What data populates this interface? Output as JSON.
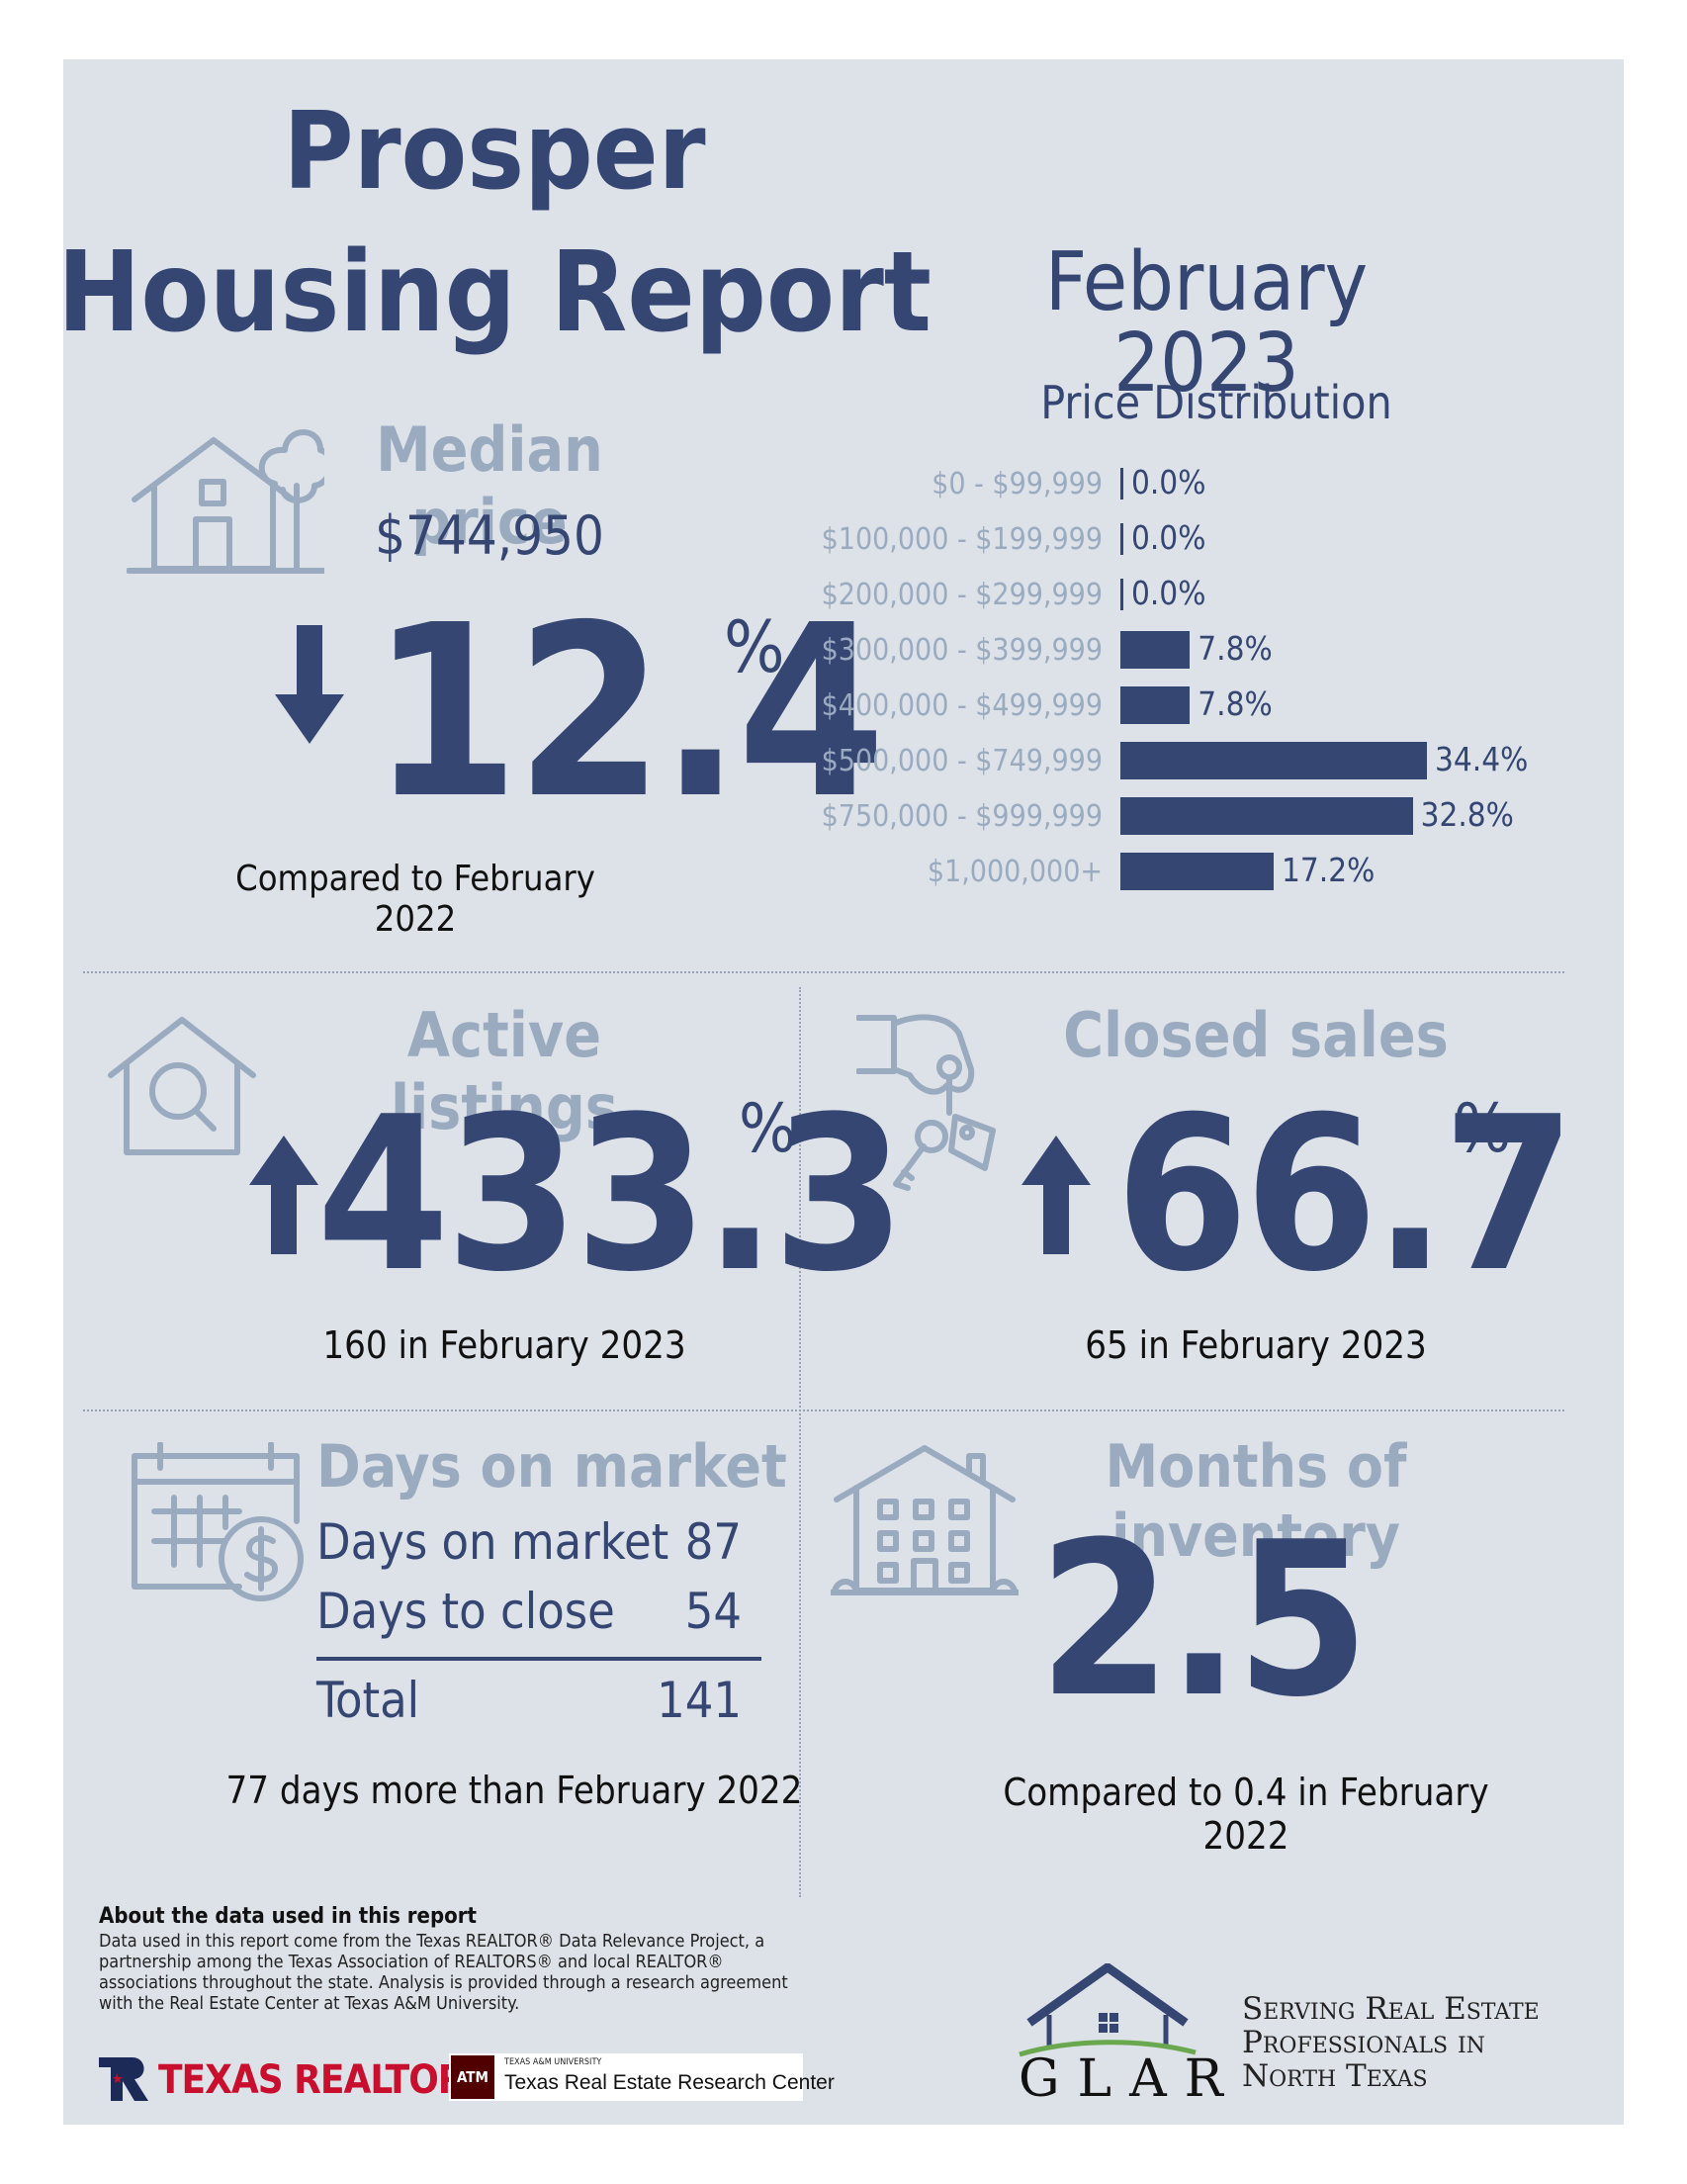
{
  "header": {
    "title_line1": "Prosper",
    "title_line2": "Housing Report",
    "date": "February 2023"
  },
  "median_price": {
    "label": "Median price",
    "value": "$744,950",
    "change": "12.4",
    "percent_sign": "%",
    "direction": "down",
    "comparison": "Compared to February 2022",
    "icon": "house-tree-icon"
  },
  "price_distribution": {
    "title": "Price Distribution",
    "ranges": [
      {
        "label": "$0 - $99,999",
        "pct": 0.0,
        "pct_text": "0.0%"
      },
      {
        "label": "$100,000 - $199,999",
        "pct": 0.0,
        "pct_text": "0.0%"
      },
      {
        "label": "$200,000 - $299,999",
        "pct": 0.0,
        "pct_text": "0.0%"
      },
      {
        "label": "$300,000 - $399,999",
        "pct": 7.8,
        "pct_text": "7.8%"
      },
      {
        "label": "$400,000 - $499,999",
        "pct": 7.8,
        "pct_text": "7.8%"
      },
      {
        "label": "$500,000 - $749,999",
        "pct": 34.4,
        "pct_text": "34.4%"
      },
      {
        "label": "$750,000 - $999,999",
        "pct": 32.8,
        "pct_text": "32.8%"
      },
      {
        "label": "$1,000,000+",
        "pct": 17.2,
        "pct_text": "17.2%"
      }
    ]
  },
  "active_listings": {
    "label": "Active listings",
    "change": "433.3",
    "percent_sign": "%",
    "direction": "up",
    "detail": "160 in February 2023",
    "icon": "house-magnifier-icon"
  },
  "closed_sales": {
    "label": "Closed sales",
    "change": "66.7",
    "percent_sign": "%",
    "direction": "up",
    "detail": "65 in February 2023",
    "icon": "hand-keys-icon"
  },
  "days_on_market": {
    "label": "Days on market",
    "rows": [
      {
        "label": "Days on market",
        "value": "87"
      },
      {
        "label": "Days to close",
        "value": "54"
      }
    ],
    "total_label": "Total",
    "total_value": "141",
    "comparison": "77 days more than February 2022",
    "icon": "calendar-dollar-icon"
  },
  "months_inventory": {
    "label": "Months of inventory",
    "value": "2.5",
    "comparison": "Compared to 0.4 in February 2022",
    "icon": "apartment-house-icon"
  },
  "footer": {
    "about_title": "About the data used in this report",
    "about_lines": [
      "Data used in this report come from the Texas REALTOR® Data Relevance Project, a",
      "partnership among the Texas Association of REALTORS® and local REALTOR®",
      "associations throughout the state. Analysis is provided through a research agreement",
      "with the Real Estate Center at Texas A&M University."
    ],
    "texas_realtors": "TEXAS REALTORS",
    "tamu_small": "TEXAS A&M UNIVERSITY",
    "tamu_center": "Texas Real Estate Research Center",
    "glar": "GLAR",
    "tagline_lines": [
      "Serving Real Estate",
      "Professionals in",
      "North Texas"
    ]
  },
  "colors": {
    "navy": "#354673",
    "light": "#9aabc0",
    "panel": "#dde1e8",
    "texas_red": "#c8102e",
    "glar_green": "#6aa84f"
  }
}
